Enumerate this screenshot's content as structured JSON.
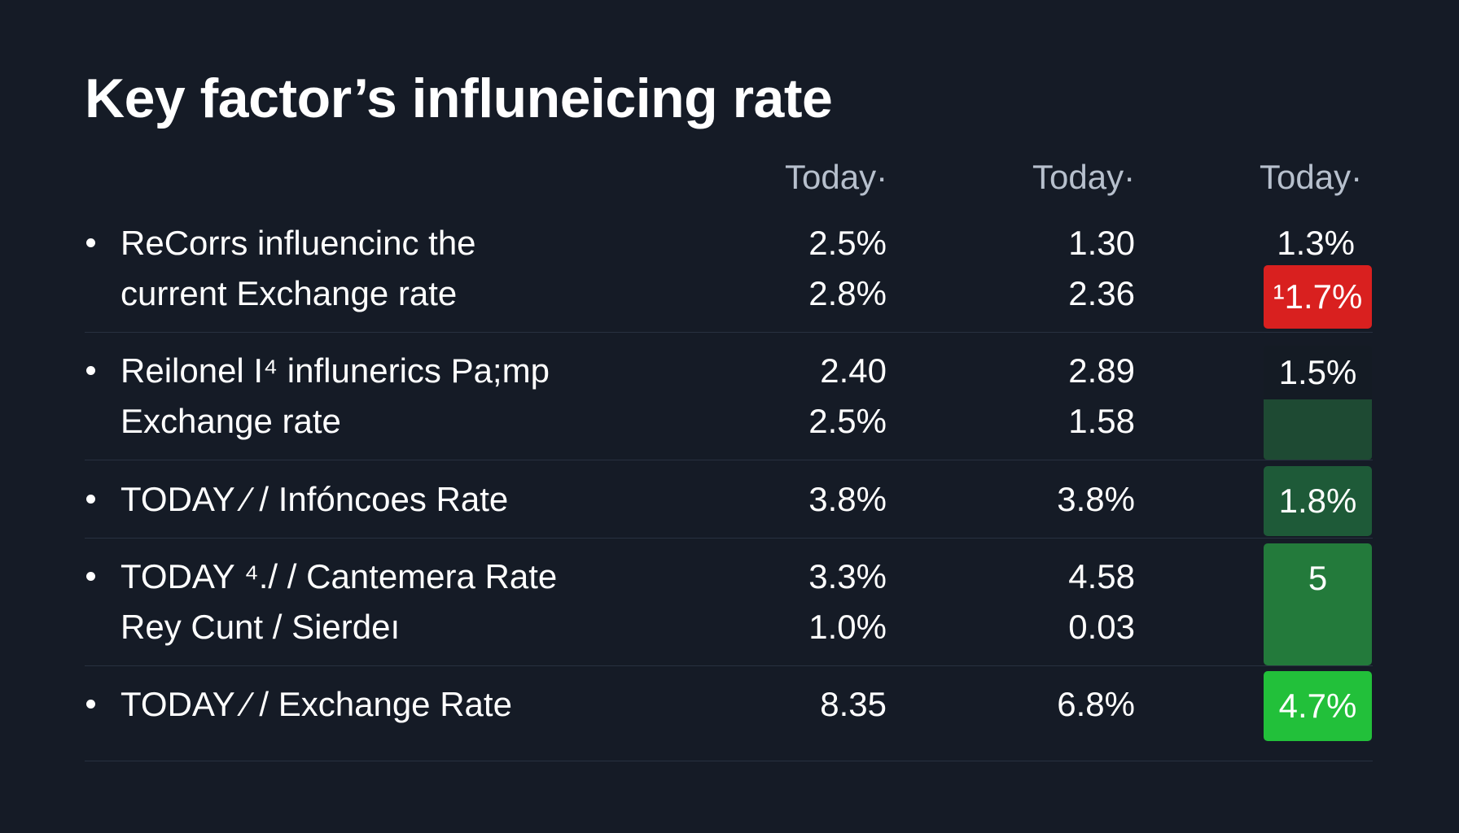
{
  "title": "Key factor’s  influneicing rate",
  "columns": [
    "Today·",
    "Today·",
    "Today·"
  ],
  "rows": [
    {
      "lines": [
        "ReCorrs influencinc the",
        "current Exchange rate"
      ],
      "col1": [
        "2.5%",
        "2.8%"
      ],
      "col2": [
        "1.30",
        "2.36"
      ],
      "col3_plain": "1.3%",
      "col3_badge": "¹1.7%",
      "col3_badge_color": "#d9201f"
    },
    {
      "lines": [
        "Reilonel I⁴ influnerics Pa;mp",
        "Exchange rate"
      ],
      "col1": [
        "2.40",
        "2.5%"
      ],
      "col2": [
        "2.89",
        "1.58"
      ],
      "col3_badge": "1.5%",
      "col3_badge_color": "#1e4a33"
    },
    {
      "lines": [
        "TODAY ⁄ / Infóncoes Rate"
      ],
      "col1": [
        "3.8%"
      ],
      "col2": [
        "3.8%"
      ],
      "col3_badge": "1.8%",
      "col3_badge_color": "#1e5a38"
    },
    {
      "lines": [
        "TODAY ⁴./ / Cantemera Rate",
        "Rey Cunt / Sierdeı"
      ],
      "col1": [
        "3.3%",
        "1.0%"
      ],
      "col2": [
        "4.58",
        "0.03"
      ],
      "col3_badge": "5",
      "col3_badge_color": "#237a3b"
    },
    {
      "lines": [
        "TODAY ⁄ / Exchange Rate"
      ],
      "col1": [
        "8.35"
      ],
      "col2": [
        "6.8%"
      ],
      "col3_badge": "4.7%",
      "col3_badge_color": "#22c03a"
    }
  ]
}
